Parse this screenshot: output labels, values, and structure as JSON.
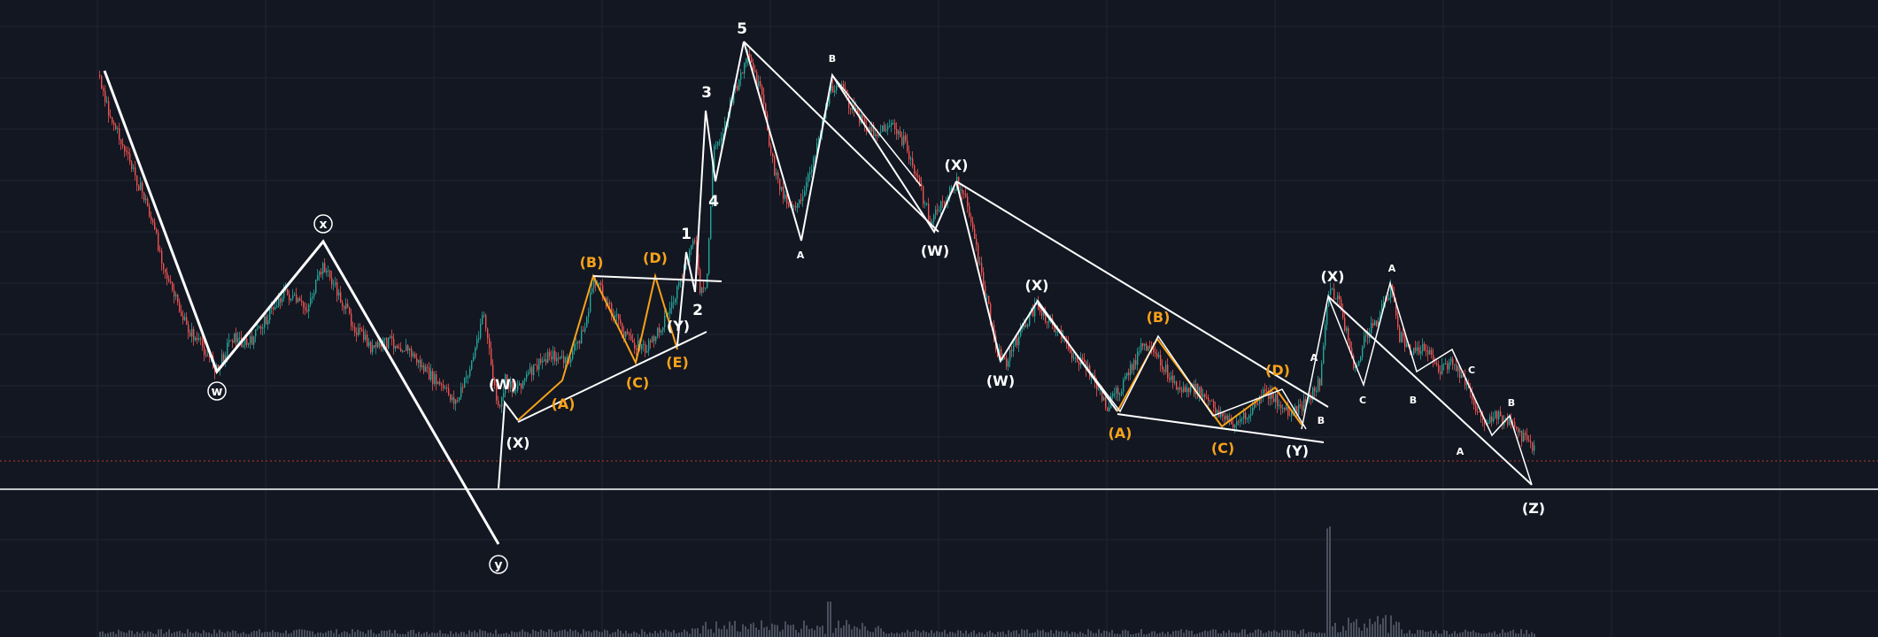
{
  "colors": {
    "background": "#131722",
    "grid": "#1f2433",
    "candle_up": "#26a69a",
    "candle_down": "#ef5350",
    "wave_white": "#ffffff",
    "wave_orange": "#f7a21b",
    "dotted_price_line": "#c0392b",
    "volume": "#4a4f5e"
  },
  "chart_data": {
    "type": "candlestick-elliott-wave",
    "title": "",
    "xlabel": "",
    "ylabel": "",
    "grid": true,
    "primary_wave": {
      "labels": [
        "w",
        "x",
        "y"
      ],
      "circled": true
    },
    "impulse_wave": {
      "labels": [
        "1",
        "2",
        "3",
        "4",
        "5"
      ]
    },
    "orange_triangle_left": {
      "labels": [
        "(A)",
        "(B)",
        "(C)",
        "(D)",
        "(E)"
      ]
    },
    "orange_triangle_right": {
      "labels": [
        "(A)",
        "(B)",
        "(C)",
        "(D)"
      ]
    },
    "corrective_labels": {
      "left_wxy": [
        "(W)",
        "(X)",
        "(Y)"
      ],
      "middle_wx": [
        "(W)",
        "(X)"
      ],
      "lower_wx": [
        "(W)",
        "(X)"
      ],
      "right_xz": [
        "(X)",
        "(Y)",
        "(Z)"
      ],
      "abc_small": [
        "A",
        "B",
        "A",
        "B",
        "C",
        "A",
        "B",
        "C",
        "A",
        "B"
      ]
    },
    "horizontal_support_line": true,
    "current_price_line": "dotted"
  }
}
